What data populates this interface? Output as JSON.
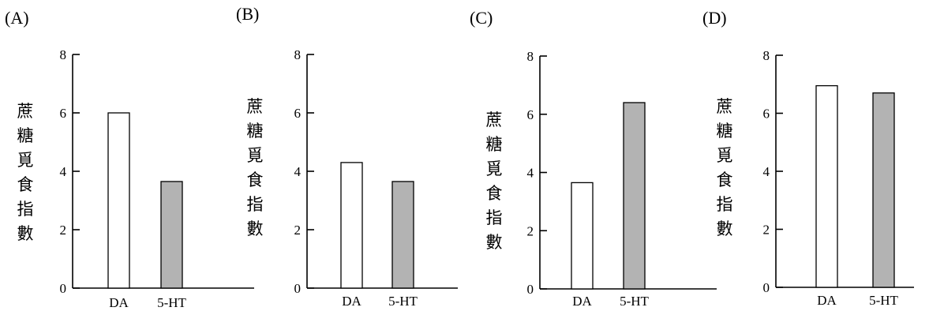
{
  "figure": {
    "panels": [
      "(A)",
      "(B)",
      "(C)",
      "(D)"
    ]
  },
  "chart_data": [
    {
      "type": "bar",
      "panel": "(A)",
      "ylabel": "蔗糖覓食指數",
      "categories": [
        "DA",
        "5-HT"
      ],
      "values": [
        6.0,
        3.65
      ],
      "ylim": [
        0,
        8
      ],
      "yticks": [
        0,
        2,
        4,
        6,
        8
      ],
      "bar_colors": [
        "#ffffff",
        "#b3b3b3"
      ],
      "grid": false
    },
    {
      "type": "bar",
      "panel": "(B)",
      "ylabel": "蔗糖覓食指數",
      "categories": [
        "DA",
        "5-HT"
      ],
      "values": [
        4.3,
        3.65
      ],
      "ylim": [
        0,
        8
      ],
      "yticks": [
        0,
        2,
        4,
        6,
        8
      ],
      "bar_colors": [
        "#ffffff",
        "#b3b3b3"
      ],
      "grid": false
    },
    {
      "type": "bar",
      "panel": "(C)",
      "ylabel": "蔗糖覓食指數",
      "categories": [
        "DA",
        "5-HT"
      ],
      "values": [
        3.65,
        6.4
      ],
      "ylim": [
        0,
        8
      ],
      "yticks": [
        0,
        2,
        4,
        6,
        8
      ],
      "bar_colors": [
        "#ffffff",
        "#b3b3b3"
      ],
      "grid": false
    },
    {
      "type": "bar",
      "panel": "(D)",
      "ylabel": "蔗糖覓食指數",
      "categories": [
        "DA",
        "5-HT"
      ],
      "values": [
        6.95,
        6.7
      ],
      "ylim": [
        0,
        8
      ],
      "yticks": [
        0,
        2,
        4,
        6,
        8
      ],
      "bar_colors": [
        "#ffffff",
        "#b3b3b3"
      ],
      "grid": false
    }
  ]
}
